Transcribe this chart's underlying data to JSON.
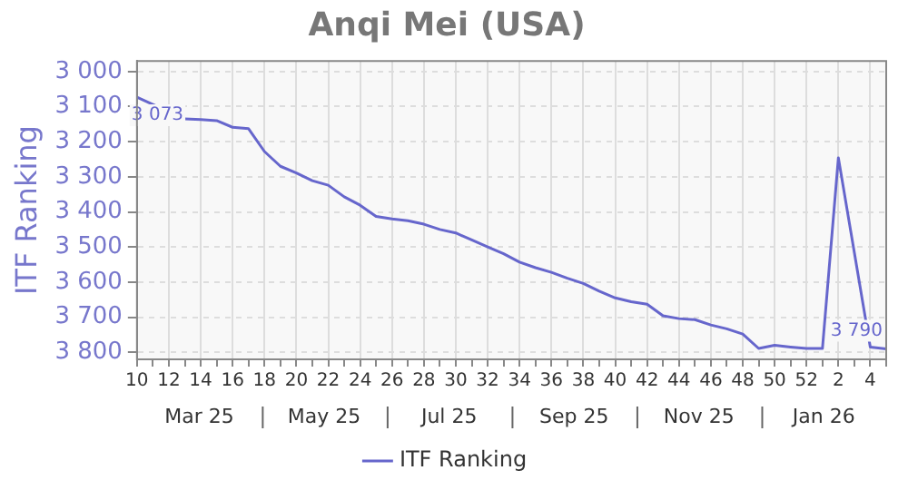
{
  "chart_data": {
    "type": "line",
    "title": "Anqi Mei (USA)",
    "ylabel": "ITF Ranking",
    "categories": [
      "10",
      null,
      "12",
      null,
      "14",
      null,
      "16",
      null,
      "18",
      null,
      "20",
      null,
      "22",
      null,
      "24",
      null,
      "26",
      null,
      "28",
      null,
      "30",
      null,
      "32",
      null,
      "34",
      null,
      "36",
      null,
      "38",
      null,
      "40",
      null,
      "42",
      null,
      "44",
      null,
      "46",
      null,
      "48",
      null,
      "50",
      null,
      "52",
      null,
      "2",
      null,
      "4",
      null
    ],
    "series": [
      {
        "name": "ITF Ranking",
        "color": "#6666cc",
        "values": [
          3073,
          null,
          null,
          3135,
          3137,
          3140,
          3159,
          3163,
          3228,
          3270,
          3289,
          3311,
          3324,
          3357,
          3381,
          3413,
          3420,
          3425,
          3435,
          3450,
          3460,
          3480,
          3500,
          3519,
          3543,
          3559,
          3572,
          3589,
          3604,
          3626,
          3645,
          3656,
          3663,
          3696,
          3704,
          3707,
          3722,
          3733,
          3748,
          3789,
          3780,
          3785,
          3789,
          3789,
          3246,
          null,
          3785,
          3790
        ],
        "value_labels": [
          "3 073",
          null,
          null,
          null,
          null,
          null,
          null,
          null,
          null,
          null,
          null,
          null,
          null,
          null,
          null,
          null,
          null,
          null,
          null,
          null,
          null,
          null,
          null,
          null,
          null,
          null,
          null,
          null,
          null,
          null,
          null,
          null,
          null,
          null,
          null,
          null,
          null,
          null,
          null,
          null,
          null,
          null,
          null,
          null,
          null,
          null,
          null,
          "3 790"
        ]
      }
    ],
    "ylim": [
      3820,
      2970
    ],
    "yticks": [
      {
        "value": 3000,
        "label": "3 000"
      },
      {
        "value": 3100,
        "label": "3 100"
      },
      {
        "value": 3200,
        "label": "3 200"
      },
      {
        "value": 3300,
        "label": "3 300"
      },
      {
        "value": 3400,
        "label": "3 400"
      },
      {
        "value": 3500,
        "label": "3 500"
      },
      {
        "value": 3600,
        "label": "3 600"
      },
      {
        "value": 3700,
        "label": "3 700"
      },
      {
        "value": 3800,
        "label": "3 800"
      }
    ],
    "annotations": [
      "Mar 25",
      "May 25",
      "Jul 25",
      "Sep 25",
      "Nov 25",
      "Jan 26"
    ],
    "grid": true,
    "legend": "bottom",
    "marker": "none",
    "line_style": "solid"
  }
}
